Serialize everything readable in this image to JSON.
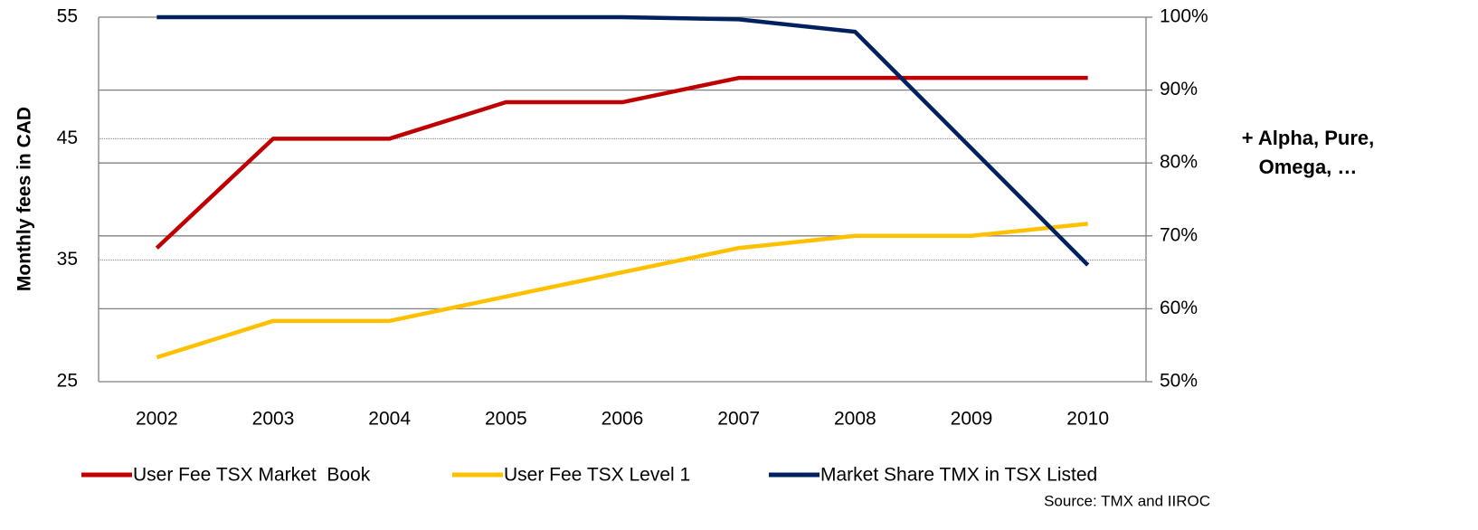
{
  "chart_data": {
    "type": "line",
    "y_label": "Monthly fees in CAD",
    "annotation": [
      "+ Alpha, Pure,",
      "Omega, …"
    ],
    "source": "Source: TMX and IIROC",
    "categories": [
      "2002",
      "2003",
      "2004",
      "2005",
      "2006",
      "2007",
      "2008",
      "2009",
      "2010"
    ],
    "series": [
      {
        "name": "User Fee TSX Market  Book",
        "color": "#c00000",
        "values": [
          36,
          45,
          45,
          48,
          48,
          50,
          50,
          50,
          50
        ]
      },
      {
        "name": "User Fee TSX Level 1",
        "color": "#ffc000",
        "values": [
          27,
          30,
          30,
          32,
          34,
          36,
          37,
          37,
          38
        ]
      },
      {
        "name": "Market Share TMX in TSX Listed",
        "color": "#002060",
        "axis": "y2",
        "values": [
          100,
          100,
          100,
          100,
          100,
          99.7,
          98,
          82,
          66
        ]
      }
    ],
    "ylim": [
      25,
      55
    ],
    "yticks": [
      25,
      35,
      45,
      55
    ],
    "y2lim": [
      50,
      100
    ],
    "y2ticks": [
      {
        "value": 50,
        "label": "50%"
      },
      {
        "value": 60,
        "label": "60%"
      },
      {
        "value": 70,
        "label": "70%"
      },
      {
        "value": 80,
        "label": "80%"
      },
      {
        "value": 90,
        "label": "90%"
      },
      {
        "value": 100,
        "label": "100%"
      }
    ],
    "grid": true,
    "legend": "bottom"
  }
}
